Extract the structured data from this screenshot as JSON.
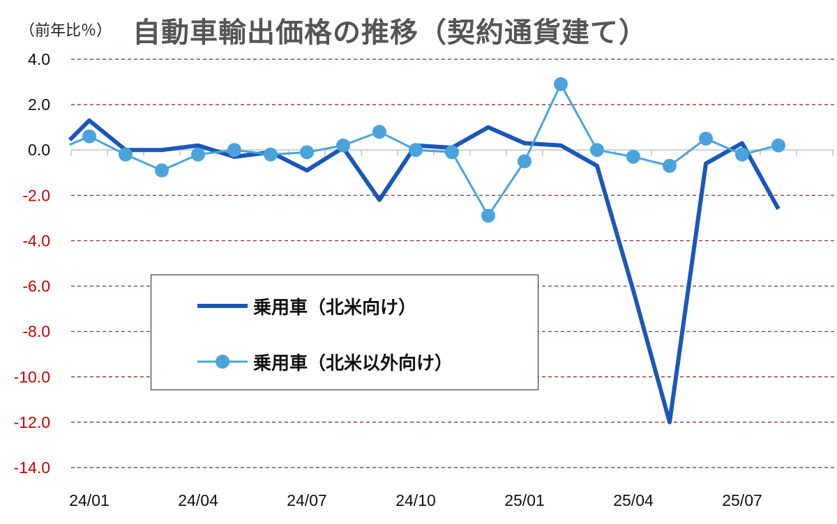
{
  "header": {
    "unit": "（前年比％）",
    "title": "自動車輸出価格の推移（契約通貨建て）"
  },
  "colors": {
    "series1": "#1a57b8",
    "series2": "#4aa3dd",
    "gridline": "#8b1a1a",
    "negative_tick": "#cc0000",
    "positive_tick": "#111111"
  },
  "chart_data": {
    "type": "line",
    "ylim": [
      -14,
      4
    ],
    "yticks": [
      4.0,
      2.0,
      0.0,
      -2.0,
      -4.0,
      -6.0,
      -8.0,
      -10.0,
      -12.0,
      -14.0
    ],
    "ytick_labels": [
      "4.0",
      "2.0",
      "0.0",
      "-2.0",
      "-4.0",
      "-6.0",
      "-8.0",
      "-10.0",
      "-12.0",
      "-14.0"
    ],
    "grid": true,
    "legend_position": "center-left",
    "x": [
      "24/01",
      "24/02",
      "24/03",
      "24/04",
      "24/05",
      "24/06",
      "24/07",
      "24/08",
      "24/09",
      "24/10",
      "24/11",
      "24/12",
      "25/01",
      "25/02",
      "25/03",
      "25/04",
      "25/05",
      "25/06",
      "25/07",
      "25/08"
    ],
    "xtick_labels": [
      {
        "index": 0,
        "label": "24/01"
      },
      {
        "index": 3,
        "label": "24/04"
      },
      {
        "index": 6,
        "label": "24/07"
      },
      {
        "index": 9,
        "label": "24/10"
      },
      {
        "index": 12,
        "label": "25/01"
      },
      {
        "index": 15,
        "label": "25/04"
      },
      {
        "index": 18,
        "label": "25/07"
      }
    ],
    "series": [
      {
        "name": "乗用車（北米向け）",
        "values": [
          1.3,
          0.0,
          0.0,
          0.2,
          -0.3,
          -0.1,
          -0.9,
          0.1,
          -2.2,
          0.2,
          0.1,
          1.0,
          0.3,
          0.2,
          -0.7,
          -6.2,
          -12.0,
          -0.6,
          0.3,
          -2.6
        ],
        "markers": false
      },
      {
        "name": "乗用車（北米以外向け）",
        "values": [
          0.6,
          -0.2,
          -0.9,
          -0.2,
          0.0,
          -0.2,
          -0.1,
          0.2,
          0.8,
          0.0,
          -0.1,
          -2.9,
          -0.5,
          2.9,
          0.0,
          -0.3,
          -0.7,
          0.5,
          -0.2,
          0.2
        ],
        "markers": true
      }
    ]
  }
}
